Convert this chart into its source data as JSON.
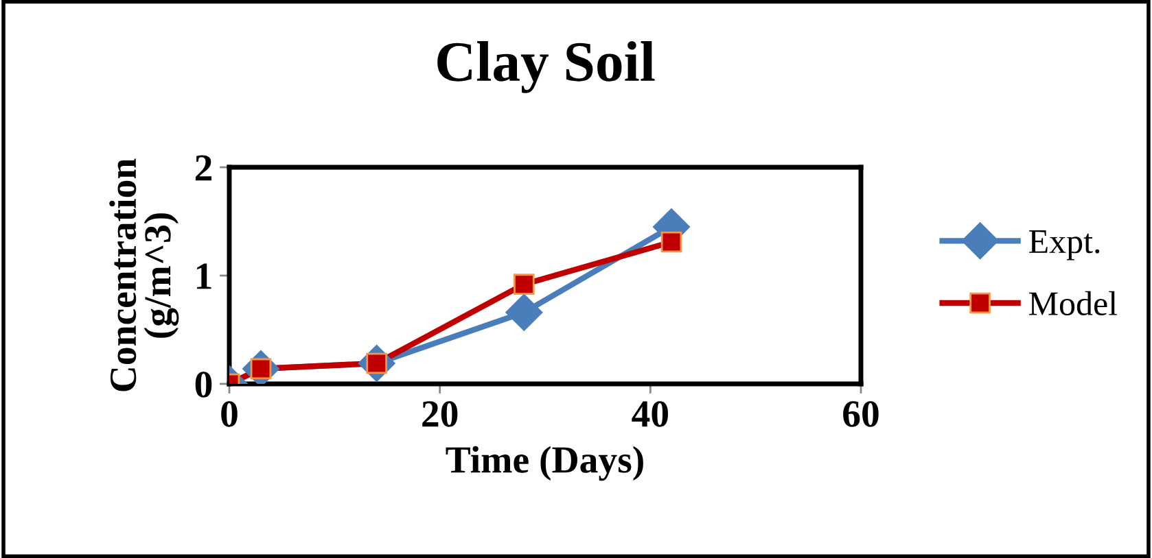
{
  "chart_data": {
    "type": "line",
    "title": "Clay Soil",
    "xlabel": "Time (Days)",
    "ylabel": "Concentration\n(g/m^3)",
    "xlim": [
      0,
      60
    ],
    "xticks": [
      0,
      20,
      40,
      60
    ],
    "ylim": [
      0,
      2
    ],
    "yticks": [
      0,
      1,
      2
    ],
    "grid": false,
    "legend": "right",
    "line_style": "solid",
    "series": [
      {
        "name": "Expt.",
        "color": "#4a7ebb",
        "marker": "diamond",
        "x": [
          0,
          3,
          14,
          28,
          42
        ],
        "values": [
          0,
          0.14,
          0.19,
          0.66,
          1.45
        ]
      },
      {
        "name": "Model",
        "color": "#c00000",
        "marker": "square",
        "x": [
          0,
          3,
          14,
          28,
          42
        ],
        "values": [
          0,
          0.14,
          0.19,
          0.92,
          1.31
        ]
      }
    ]
  }
}
